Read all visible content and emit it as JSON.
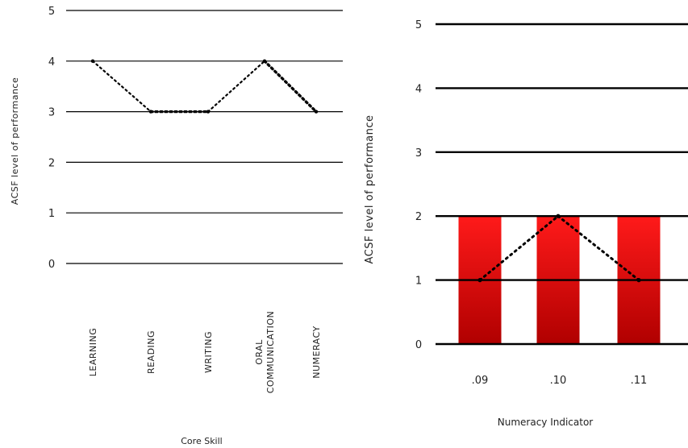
{
  "chart_data": [
    {
      "type": "line",
      "categories": [
        "LEARNING",
        "READING",
        "WRITING",
        "ORAL COMMUNICATION",
        "NUMERACY"
      ],
      "category_lines": [
        [
          "LEARNING"
        ],
        [
          "READING"
        ],
        [
          "WRITING"
        ],
        [
          "ORAL",
          "COMMUNICATION"
        ],
        [
          "NUMERACY"
        ]
      ],
      "values": [
        4,
        3,
        3,
        4,
        3
      ],
      "yticks": [
        0,
        1,
        2,
        3,
        4,
        5
      ],
      "ylim": [
        0,
        5
      ],
      "title": "",
      "xlabel": "Core Skill",
      "ylabel": "ACSF level of performance",
      "grid": true,
      "line_color": "#000000"
    },
    {
      "type": "bar",
      "categories": [
        ".09",
        ".10",
        ".11"
      ],
      "values": [
        2,
        2,
        2
      ],
      "line_values": [
        1,
        2,
        1
      ],
      "yticks": [
        0,
        1,
        2,
        3,
        4,
        5
      ],
      "ylim": [
        0,
        5
      ],
      "title": "",
      "xlabel": "Numeracy Indicator",
      "ylabel": "ACSF level of performance",
      "grid": true,
      "bar_color_top": "#ff1a1a",
      "bar_color_bottom": "#b00000",
      "line_color": "#000000"
    }
  ]
}
